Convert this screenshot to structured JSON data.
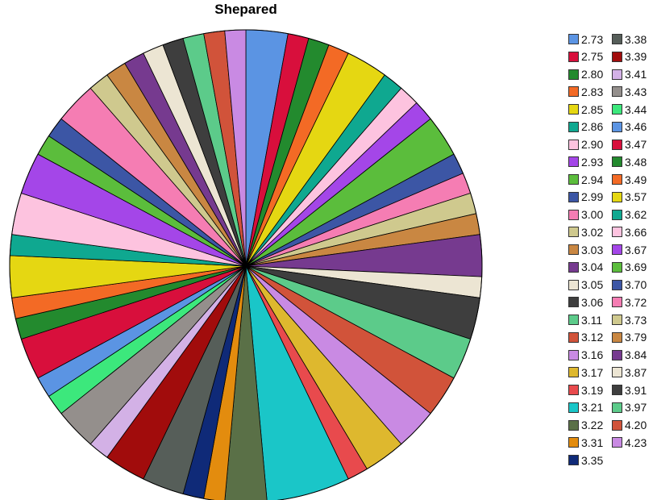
{
  "chart_data": {
    "type": "pie",
    "title": "Shepared",
    "legend_position": "right",
    "slices": [
      {
        "label": "2.73",
        "value": 3,
        "color": "#5b94e3"
      },
      {
        "label": "2.75",
        "value": 1.5,
        "color": "#d80f3c"
      },
      {
        "label": "2.80",
        "value": 1.5,
        "color": "#238a2e"
      },
      {
        "label": "2.83",
        "value": 1.5,
        "color": "#f36a25"
      },
      {
        "label": "2.85",
        "value": 3,
        "color": "#e5d712"
      },
      {
        "label": "2.86",
        "value": 1.5,
        "color": "#0fa890"
      },
      {
        "label": "2.90",
        "value": 1.5,
        "color": "#fdc3df"
      },
      {
        "label": "2.93",
        "value": 1.5,
        "color": "#a446e8"
      },
      {
        "label": "2.94",
        "value": 3,
        "color": "#5bbd3c"
      },
      {
        "label": "2.99",
        "value": 1.5,
        "color": "#3c56a5"
      },
      {
        "label": "3.00",
        "value": 1.5,
        "color": "#f57db3"
      },
      {
        "label": "3.02",
        "value": 1.5,
        "color": "#cfc98e"
      },
      {
        "label": "3.03",
        "value": 1.5,
        "color": "#c98742"
      },
      {
        "label": "3.04",
        "value": 3,
        "color": "#763a8f"
      },
      {
        "label": "3.05",
        "value": 1.5,
        "color": "#ece5d3"
      },
      {
        "label": "3.06",
        "value": 3,
        "color": "#3e3e3e"
      },
      {
        "label": "3.11",
        "value": 3,
        "color": "#5ccb8a"
      },
      {
        "label": "3.12",
        "value": 3,
        "color": "#d1533a"
      },
      {
        "label": "3.16",
        "value": 3,
        "color": "#c98ae3"
      },
      {
        "label": "3.17",
        "value": 3,
        "color": "#deb82e"
      },
      {
        "label": "3.19",
        "value": 1.5,
        "color": "#e84a4d"
      },
      {
        "label": "3.21",
        "value": 6,
        "color": "#1ac6c8"
      },
      {
        "label": "3.22",
        "value": 3,
        "color": "#5a7047"
      },
      {
        "label": "3.31",
        "value": 1.5,
        "color": "#e38c0e"
      },
      {
        "label": "3.35",
        "value": 1.5,
        "color": "#0f2a78"
      },
      {
        "label": "3.38",
        "value": 3,
        "color": "#565e59"
      },
      {
        "label": "3.39",
        "value": 3,
        "color": "#a10c0c"
      },
      {
        "label": "3.41",
        "value": 1.5,
        "color": "#d3b1e6"
      },
      {
        "label": "3.43",
        "value": 3,
        "color": "#948f8c"
      },
      {
        "label": "3.44",
        "value": 1.5,
        "color": "#3ce87c"
      },
      {
        "label": "3.46",
        "value": 1.5,
        "color": "#5b94e3"
      },
      {
        "label": "3.47",
        "value": 3,
        "color": "#d80f3c"
      },
      {
        "label": "3.48",
        "value": 1.5,
        "color": "#238a2e"
      },
      {
        "label": "3.49",
        "value": 1.5,
        "color": "#f36a25"
      },
      {
        "label": "3.57",
        "value": 3,
        "color": "#e5d712"
      },
      {
        "label": "3.62",
        "value": 1.5,
        "color": "#0fa890"
      },
      {
        "label": "3.66",
        "value": 3,
        "color": "#fdc3df"
      },
      {
        "label": "3.67",
        "value": 3,
        "color": "#a446e8"
      },
      {
        "label": "3.69",
        "value": 1.5,
        "color": "#5bbd3c"
      },
      {
        "label": "3.70",
        "value": 1.5,
        "color": "#3c56a5"
      },
      {
        "label": "3.72",
        "value": 3,
        "color": "#f57db3"
      },
      {
        "label": "3.73",
        "value": 1.5,
        "color": "#cfc98e"
      },
      {
        "label": "3.79",
        "value": 1.5,
        "color": "#c98742"
      },
      {
        "label": "3.84",
        "value": 1.5,
        "color": "#763a8f"
      },
      {
        "label": "3.87",
        "value": 1.5,
        "color": "#ece5d3"
      },
      {
        "label": "3.91",
        "value": 1.5,
        "color": "#3e3e3e"
      },
      {
        "label": "3.97",
        "value": 1.5,
        "color": "#5ccb8a"
      },
      {
        "label": "4.20",
        "value": 1.5,
        "color": "#d1533a"
      },
      {
        "label": "4.23",
        "value": 1.5,
        "color": "#c98ae3"
      }
    ]
  }
}
